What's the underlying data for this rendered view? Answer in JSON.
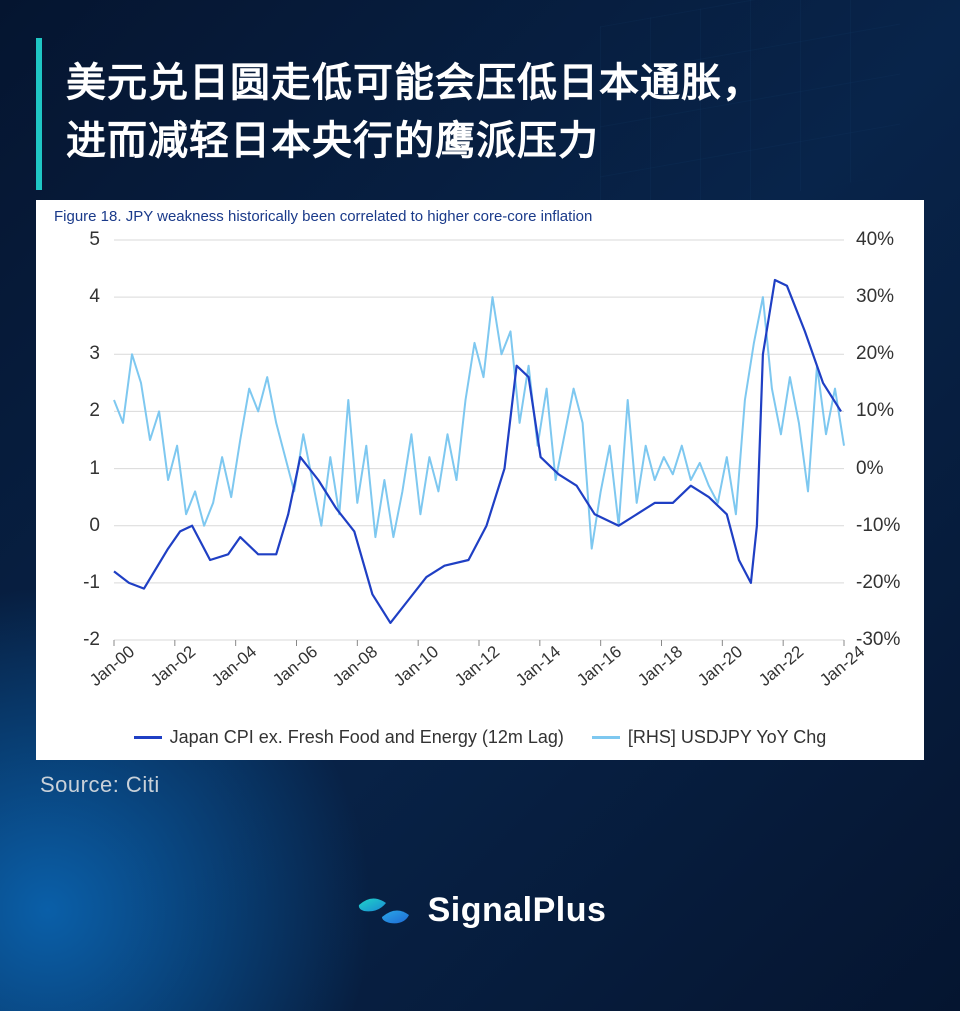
{
  "page": {
    "background_colors": [
      "#051530",
      "#08244a"
    ],
    "accent_color": "#1fc6c4"
  },
  "headline": {
    "line1": "美元兑日圆走低可能会压低日本通胀，",
    "line2": "进而减轻日本央行的鹰派压力",
    "fontsize": 40,
    "font_weight": 700,
    "color": "#ffffff",
    "border_color": "#1fc6c4"
  },
  "chart": {
    "type": "line-dual-axis",
    "figure_title": "Figure 18. JPY weakness historically been correlated to higher core-core inflation",
    "figure_title_color": "#1a3a8a",
    "figure_title_fontsize": 15,
    "background_color": "#ffffff",
    "grid_color": "#d9d9d9",
    "axis_font_size": 19,
    "x_labels": [
      "Jan-00",
      "Jan-02",
      "Jan-04",
      "Jan-06",
      "Jan-08",
      "Jan-10",
      "Jan-12",
      "Jan-14",
      "Jan-16",
      "Jan-18",
      "Jan-20",
      "Jan-22",
      "Jan-24"
    ],
    "left_axis": {
      "min": -2,
      "max": 5,
      "step": 1,
      "ticks": [
        5,
        4,
        3,
        2,
        1,
        0,
        -1,
        -2
      ]
    },
    "right_axis": {
      "min": -30,
      "max": 40,
      "step": 10,
      "ticks": [
        "40%",
        "30%",
        "20%",
        "10%",
        "0%",
        "-10%",
        "-20%",
        "-30%"
      ]
    },
    "series": [
      {
        "name": "Japan CPI ex. Fresh Food and Energy (12m Lag)",
        "axis": "left",
        "color": "#1f3fc4",
        "line_width": 2.2,
        "data": [
          [
            0.0,
            -0.8
          ],
          [
            0.5,
            -1.0
          ],
          [
            1.0,
            -1.1
          ],
          [
            1.8,
            -0.4
          ],
          [
            2.2,
            -0.1
          ],
          [
            2.6,
            0.0
          ],
          [
            3.2,
            -0.6
          ],
          [
            3.8,
            -0.5
          ],
          [
            4.2,
            -0.2
          ],
          [
            4.8,
            -0.5
          ],
          [
            5.4,
            -0.5
          ],
          [
            5.8,
            0.2
          ],
          [
            6.2,
            1.2
          ],
          [
            6.8,
            0.8
          ],
          [
            7.4,
            0.3
          ],
          [
            8.0,
            -0.1
          ],
          [
            8.6,
            -1.2
          ],
          [
            9.2,
            -1.7
          ],
          [
            9.8,
            -1.3
          ],
          [
            10.4,
            -0.9
          ],
          [
            11.0,
            -0.7
          ],
          [
            11.8,
            -0.6
          ],
          [
            12.4,
            0.0
          ],
          [
            13.0,
            1.0
          ],
          [
            13.4,
            2.8
          ],
          [
            13.8,
            2.6
          ],
          [
            14.2,
            1.2
          ],
          [
            14.8,
            0.9
          ],
          [
            15.4,
            0.7
          ],
          [
            16.0,
            0.2
          ],
          [
            16.8,
            0.0
          ],
          [
            17.4,
            0.2
          ],
          [
            18.0,
            0.4
          ],
          [
            18.6,
            0.4
          ],
          [
            19.2,
            0.7
          ],
          [
            19.8,
            0.5
          ],
          [
            20.4,
            0.2
          ],
          [
            20.8,
            -0.6
          ],
          [
            21.2,
            -1.0
          ],
          [
            21.4,
            0.0
          ],
          [
            21.6,
            3.0
          ],
          [
            22.0,
            4.3
          ],
          [
            22.4,
            4.2
          ],
          [
            23.0,
            3.4
          ],
          [
            23.6,
            2.5
          ],
          [
            24.2,
            2.0
          ]
        ]
      },
      {
        "name": "[RHS] USDJPY YoY Chg",
        "axis": "right",
        "color": "#7ec8f0",
        "line_width": 2.0,
        "data": [
          [
            0.0,
            12
          ],
          [
            0.3,
            8
          ],
          [
            0.6,
            20
          ],
          [
            0.9,
            15
          ],
          [
            1.2,
            5
          ],
          [
            1.5,
            10
          ],
          [
            1.8,
            -2
          ],
          [
            2.1,
            4
          ],
          [
            2.4,
            -8
          ],
          [
            2.7,
            -4
          ],
          [
            3.0,
            -10
          ],
          [
            3.3,
            -6
          ],
          [
            3.6,
            2
          ],
          [
            3.9,
            -5
          ],
          [
            4.2,
            5
          ],
          [
            4.5,
            14
          ],
          [
            4.8,
            10
          ],
          [
            5.1,
            16
          ],
          [
            5.4,
            8
          ],
          [
            5.7,
            2
          ],
          [
            6.0,
            -4
          ],
          [
            6.3,
            6
          ],
          [
            6.6,
            -2
          ],
          [
            6.9,
            -10
          ],
          [
            7.2,
            2
          ],
          [
            7.5,
            -8
          ],
          [
            7.8,
            12
          ],
          [
            8.1,
            -6
          ],
          [
            8.4,
            4
          ],
          [
            8.7,
            -12
          ],
          [
            9.0,
            -2
          ],
          [
            9.3,
            -12
          ],
          [
            9.6,
            -4
          ],
          [
            9.9,
            6
          ],
          [
            10.2,
            -8
          ],
          [
            10.5,
            2
          ],
          [
            10.8,
            -4
          ],
          [
            11.1,
            6
          ],
          [
            11.4,
            -2
          ],
          [
            11.7,
            12
          ],
          [
            12.0,
            22
          ],
          [
            12.3,
            16
          ],
          [
            12.6,
            30
          ],
          [
            12.9,
            20
          ],
          [
            13.2,
            24
          ],
          [
            13.5,
            8
          ],
          [
            13.8,
            18
          ],
          [
            14.1,
            4
          ],
          [
            14.4,
            14
          ],
          [
            14.7,
            -2
          ],
          [
            15.0,
            6
          ],
          [
            15.3,
            14
          ],
          [
            15.6,
            8
          ],
          [
            15.9,
            -14
          ],
          [
            16.2,
            -4
          ],
          [
            16.5,
            4
          ],
          [
            16.8,
            -10
          ],
          [
            17.1,
            12
          ],
          [
            17.4,
            -6
          ],
          [
            17.7,
            4
          ],
          [
            18.0,
            -2
          ],
          [
            18.3,
            2
          ],
          [
            18.6,
            -1
          ],
          [
            18.9,
            4
          ],
          [
            19.2,
            -2
          ],
          [
            19.5,
            1
          ],
          [
            19.8,
            -3
          ],
          [
            20.1,
            -6
          ],
          [
            20.4,
            2
          ],
          [
            20.7,
            -8
          ],
          [
            21.0,
            12
          ],
          [
            21.3,
            22
          ],
          [
            21.6,
            30
          ],
          [
            21.9,
            14
          ],
          [
            22.2,
            6
          ],
          [
            22.5,
            16
          ],
          [
            22.8,
            8
          ],
          [
            23.1,
            -4
          ],
          [
            23.4,
            18
          ],
          [
            23.7,
            6
          ],
          [
            24.0,
            14
          ],
          [
            24.3,
            4
          ]
        ]
      }
    ],
    "legend": {
      "items": [
        {
          "label": "Japan CPI ex. Fresh Food and Energy (12m Lag)",
          "color": "#1f3fc4"
        },
        {
          "label": "[RHS] USDJPY YoY Chg",
          "color": "#7ec8f0"
        }
      ],
      "fontsize": 18
    }
  },
  "source": {
    "label": "Source: Citi",
    "fontsize": 22,
    "color": "#c9d1d9"
  },
  "logo": {
    "text": "SignalPlus",
    "mark_color_1": "#1fb6d4",
    "mark_color_2": "#3a7ef0",
    "fontsize": 34
  }
}
